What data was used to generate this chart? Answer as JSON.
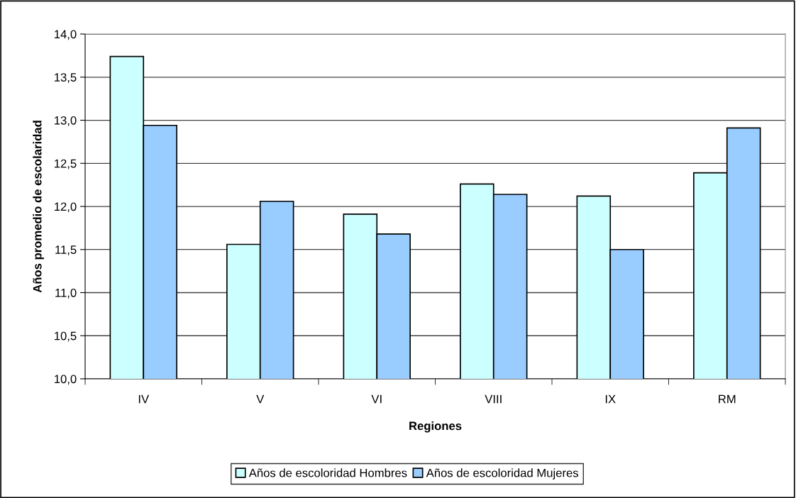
{
  "chart_data": {
    "type": "bar",
    "xlabel": "Regiones",
    "ylabel": "Años promedio de escolaridad",
    "categories": [
      "IV",
      "V",
      "VI",
      "VIII",
      "IX",
      "RM"
    ],
    "series": [
      {
        "name": "Años de escoloridad Hombres",
        "color": "#ccffff",
        "values": [
          13.74,
          11.56,
          11.91,
          12.26,
          12.12,
          12.39
        ]
      },
      {
        "name": "Años de escoloridad Mujeres",
        "color": "#99ccff",
        "values": [
          12.94,
          12.06,
          11.68,
          12.14,
          11.5,
          12.91
        ]
      }
    ],
    "ylim": [
      10,
      14
    ],
    "yticks": [
      {
        "value": 10,
        "label": "10,0"
      },
      {
        "value": 10.5,
        "label": "10,5"
      },
      {
        "value": 11,
        "label": "11,0"
      },
      {
        "value": 11.5,
        "label": "11,5"
      },
      {
        "value": 12,
        "label": "12,0"
      },
      {
        "value": 12.5,
        "label": "12,5"
      },
      {
        "value": 13,
        "label": "13,0"
      },
      {
        "value": 13.5,
        "label": "13,5"
      },
      {
        "value": 14,
        "label": "14,0"
      }
    ],
    "grid": "y",
    "legend": "bottom"
  }
}
